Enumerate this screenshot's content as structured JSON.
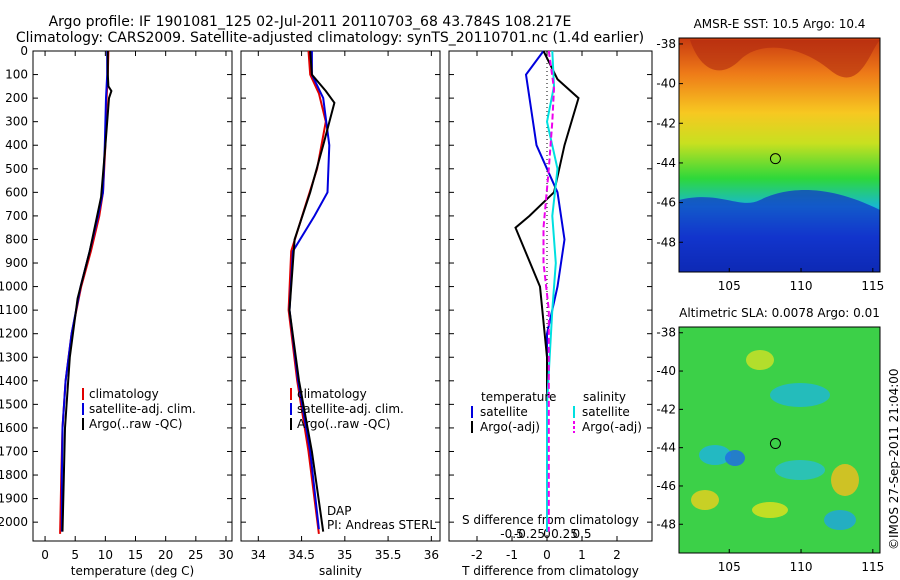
{
  "header": {
    "line1": "Argo profile: IF 1901081_125 02-Jul-2011 20110703_68 43.784S 108.217E",
    "line2": "Climatology: CARS2009. Satellite-adjusted climatology: synTS_20110701.nc (1.4d earlier)"
  },
  "colors": {
    "climatology": "#e00000",
    "satellite": "#0000dd",
    "argo": "#000000",
    "sal_sat": "#00e0e0",
    "sal_argo": "#ee00ee"
  },
  "legend": [
    "climatology",
    "satellite-adj. clim.",
    "Argo(..raw -QC)"
  ],
  "diff_legend": {
    "temp_head": "temperature",
    "sal_head": "salinity",
    "temp_items": [
      "satellite",
      "Argo(-adj)"
    ],
    "sal_items": [
      "satellite",
      "Argo(-adj)"
    ]
  },
  "credit": {
    "dap": "DAP",
    "pi": "PI: Andreas STERL"
  },
  "stamp": "©IMOS 27-Sep-2011 21:04:00",
  "map_titles": [
    "AMSR-E SST: 10.5 Argo: 10.4",
    "Altimetric SLA: 0.0078 Argo: 0.01"
  ],
  "chart_data": [
    {
      "type": "line",
      "xlabel": "temperature (deg C)",
      "xlim": [
        -2,
        31
      ],
      "ylim": [
        2080,
        0
      ],
      "xticks": [
        0,
        5,
        10,
        15,
        20,
        25,
        30
      ],
      "yticks": [
        0,
        100,
        200,
        300,
        400,
        500,
        600,
        700,
        800,
        900,
        1000,
        1100,
        1200,
        1300,
        1400,
        1500,
        1600,
        1700,
        1800,
        1900,
        2000
      ],
      "series": [
        {
          "name": "climatology",
          "color": "#e00000",
          "x": [
            10.5,
            10.4,
            10.2,
            10.0,
            9.6,
            9.0,
            7.6,
            6.0,
            4.4,
            3.4,
            2.9,
            2.7,
            2.5
          ],
          "y": [
            0,
            100,
            200,
            400,
            600,
            700,
            850,
            1000,
            1200,
            1400,
            1600,
            1800,
            2050
          ]
        },
        {
          "name": "satellite-adj. clim.",
          "color": "#0000dd",
          "x": [
            10.3,
            10.3,
            10.1,
            9.9,
            9.6,
            8.8,
            7.4,
            5.9,
            4.4,
            3.4,
            2.9,
            2.8,
            2.8
          ],
          "y": [
            0,
            100,
            200,
            400,
            600,
            700,
            850,
            1000,
            1200,
            1400,
            1600,
            1800,
            2040
          ]
        },
        {
          "name": "Argo(..raw -QC)",
          "color": "#000000",
          "x": [
            10.4,
            10.4,
            10.5,
            11.0,
            10.6,
            10.0,
            9.3,
            7.4,
            5.4,
            4.1,
            3.3,
            2.9
          ],
          "y": [
            0,
            100,
            150,
            170,
            200,
            400,
            620,
            850,
            1050,
            1300,
            1600,
            2040
          ]
        }
      ]
    },
    {
      "type": "line",
      "xlabel": "salinity",
      "xlim": [
        33.8,
        36.1
      ],
      "ylim": [
        2080,
        0
      ],
      "xticks": [
        34,
        34.5,
        35,
        35.5,
        36
      ],
      "series": [
        {
          "name": "climatology",
          "color": "#e00000",
          "x": [
            34.58,
            34.6,
            34.7,
            34.78,
            34.68,
            34.55,
            34.38,
            34.35,
            34.45,
            34.58,
            34.7
          ],
          "y": [
            0,
            100,
            180,
            300,
            500,
            650,
            850,
            1100,
            1400,
            1700,
            2050
          ]
        },
        {
          "name": "satellite-adj. clim.",
          "color": "#0000dd",
          "x": [
            34.62,
            34.62,
            34.75,
            34.82,
            34.8,
            34.65,
            34.4,
            34.36,
            34.46,
            34.6,
            34.7
          ],
          "y": [
            0,
            100,
            200,
            400,
            600,
            700,
            850,
            1100,
            1400,
            1700,
            2030
          ]
        },
        {
          "name": "Argo(..raw -QC)",
          "color": "#000000",
          "x": [
            34.6,
            34.62,
            34.78,
            34.88,
            34.75,
            34.6,
            34.42,
            34.36,
            34.47,
            34.62,
            34.75
          ],
          "y": [
            0,
            100,
            170,
            220,
            400,
            600,
            800,
            1100,
            1400,
            1700,
            2040
          ]
        }
      ]
    },
    {
      "type": "line",
      "xlabel": "T difference from climatology",
      "x2label": "S difference from climatology",
      "xlim": [
        -2.8,
        3.0
      ],
      "ylim": [
        2080,
        0
      ],
      "xticks": [
        -2,
        -1,
        0,
        1,
        2
      ],
      "x2ticks": [
        -0.5,
        -0.25,
        0,
        0.25,
        0.5
      ],
      "series": [
        {
          "name": "temperature satellite",
          "color": "#0000dd",
          "x": [
            -0.1,
            -0.6,
            -0.5,
            -0.3,
            0,
            0.3,
            0.5,
            0.3,
            0,
            0,
            0
          ],
          "y": [
            0,
            100,
            200,
            400,
            500,
            600,
            800,
            1000,
            1200,
            1600,
            2040
          ]
        },
        {
          "name": "temperature Argo(-adj)",
          "color": "#000000",
          "x": [
            -0.1,
            0.3,
            0.9,
            0.5,
            0.2,
            -0.5,
            -0.9,
            -0.2,
            0,
            0
          ],
          "y": [
            0,
            120,
            200,
            400,
            600,
            700,
            750,
            1000,
            1300,
            2040
          ]
        },
        {
          "name": "salinity satellite",
          "color": "#00e0e0",
          "x": [
            0.15,
            0.2,
            0,
            0.3,
            0.15,
            0.25,
            0.15,
            0,
            0
          ],
          "y": [
            0,
            150,
            300,
            500,
            700,
            900,
            1100,
            1500,
            2040
          ]
        },
        {
          "name": "salinity Argo(-adj)",
          "color": "#ee00ee",
          "x": [
            0.05,
            0.2,
            0.15,
            0.05,
            -0.1,
            -0.1,
            0.05,
            0.05
          ],
          "y": [
            0,
            160,
            300,
            500,
            750,
            900,
            1100,
            2040
          ]
        }
      ]
    },
    {
      "type": "heatmap",
      "title": "AMSR-E SST: 10.5 Argo: 10.4",
      "xticks": [
        105,
        110,
        115
      ],
      "yticks": [
        -38,
        -40,
        -42,
        -44,
        -46,
        -48
      ],
      "xlim": [
        101.5,
        115.5
      ],
      "ylim": [
        -49.5,
        -37.7
      ],
      "marker": {
        "x": 108.217,
        "y": -43.784
      }
    },
    {
      "type": "heatmap",
      "title": "Altimetric SLA: 0.0078 Argo: 0.01",
      "xticks": [
        105,
        110,
        115
      ],
      "yticks": [
        -38,
        -40,
        -42,
        -44,
        -46,
        -48
      ],
      "xlim": [
        101.5,
        115.5
      ],
      "ylim": [
        -49.5,
        -37.7
      ],
      "marker": {
        "x": 108.217,
        "y": -43.784
      }
    }
  ]
}
